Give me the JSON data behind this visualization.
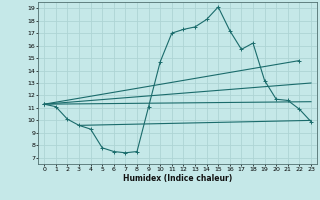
{
  "title": "",
  "xlabel": "Humidex (Indice chaleur)",
  "ylabel": "",
  "bg_color": "#c5e8e8",
  "grid_color": "#aed4d4",
  "line_color": "#1a6b6b",
  "xlim": [
    -0.5,
    23.5
  ],
  "ylim": [
    6.5,
    19.5
  ],
  "xticks": [
    0,
    1,
    2,
    3,
    4,
    5,
    6,
    7,
    8,
    9,
    10,
    11,
    12,
    13,
    14,
    15,
    16,
    17,
    18,
    19,
    20,
    21,
    22,
    23
  ],
  "yticks": [
    7,
    8,
    9,
    10,
    11,
    12,
    13,
    14,
    15,
    16,
    17,
    18,
    19
  ],
  "series1_x": [
    0,
    1,
    2,
    3,
    4,
    5,
    6,
    7,
    8,
    9,
    10,
    11,
    12,
    13,
    14,
    15,
    16,
    17,
    18,
    19,
    20,
    21,
    22,
    23
  ],
  "series1_y": [
    11.3,
    11.1,
    10.1,
    9.6,
    9.3,
    7.8,
    7.5,
    7.4,
    7.5,
    11.1,
    14.7,
    17.0,
    17.3,
    17.5,
    18.1,
    19.1,
    17.2,
    15.7,
    16.2,
    13.2,
    11.7,
    11.6,
    10.9,
    9.9
  ],
  "series2_x": [
    0,
    22
  ],
  "series2_y": [
    11.3,
    14.8
  ],
  "series3_x": [
    0,
    23
  ],
  "series3_y": [
    11.3,
    13.0
  ],
  "series4_x": [
    3,
    23
  ],
  "series4_y": [
    9.6,
    10.0
  ],
  "series5_x": [
    0,
    23
  ],
  "series5_y": [
    11.3,
    11.5
  ]
}
